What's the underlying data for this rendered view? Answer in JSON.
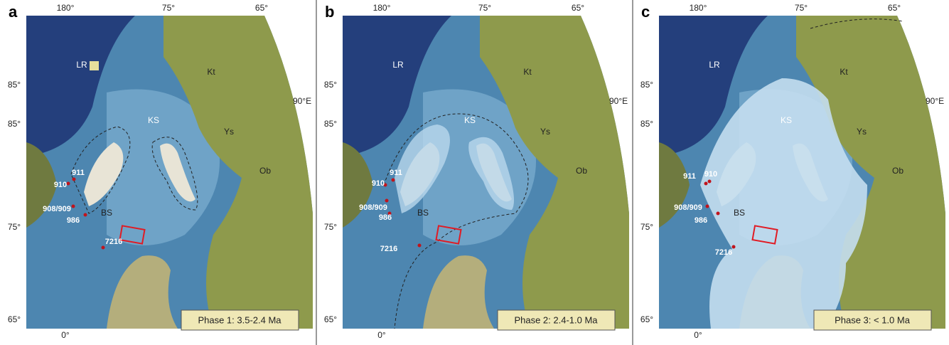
{
  "panels": [
    {
      "letter": "a",
      "lon_labels": [
        "180°",
        "75°",
        "65°"
      ],
      "lat_labels": [
        "85°",
        "85°",
        "75°",
        "65°"
      ],
      "east_label": "90°E",
      "zero_label": "0°",
      "places": [
        "LR",
        "KS",
        "Kt",
        "Ys",
        "Ob",
        "BS"
      ],
      "sites": [
        "911",
        "910",
        "908/909",
        "986",
        "7216"
      ],
      "phase": "Phase 1: 3.5-2.4 Ma"
    },
    {
      "letter": "b",
      "lon_labels": [
        "180°",
        "75°",
        "65°"
      ],
      "lat_labels": [
        "85°",
        "85°",
        "75°",
        "65°"
      ],
      "east_label": "90°E",
      "zero_label": "0°",
      "places": [
        "LR",
        "KS",
        "Kt",
        "Ys",
        "Ob",
        "BS"
      ],
      "sites": [
        "911",
        "910",
        "908/909",
        "986",
        "7216"
      ],
      "phase": "Phase 2: 2.4-1.0 Ma"
    },
    {
      "letter": "c",
      "lon_labels": [
        "180°",
        "75°",
        "65°"
      ],
      "lat_labels": [
        "85°",
        "85°",
        "75°",
        "65°"
      ],
      "east_label": "90°E",
      "zero_label": "0°",
      "places": [
        "LR",
        "KS",
        "Kt",
        "Ys",
        "Ob",
        "BS"
      ],
      "sites": [
        "910",
        "911",
        "908/909",
        "986",
        "7216"
      ],
      "phase": "Phase 3: < 1.0 Ma"
    }
  ]
}
